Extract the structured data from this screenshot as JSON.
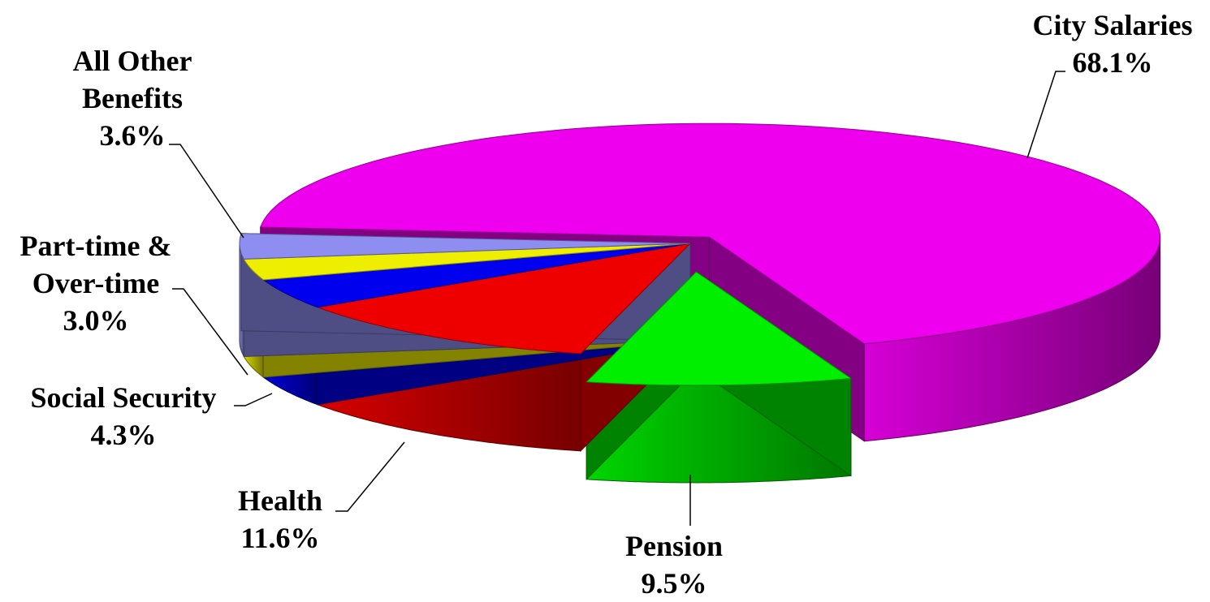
{
  "chart_data": {
    "type": "pie3d",
    "categories": [
      "City Salaries",
      "Pension",
      "Health",
      "Social Security",
      "Part-time & Over-time",
      "All Other Benefits"
    ],
    "values": [
      68.1,
      9.5,
      11.6,
      4.3,
      3.0,
      3.6
    ],
    "value_labels": [
      "68.1%",
      "9.5%",
      "11.6%",
      "4.3%",
      "3.0%",
      "3.6%"
    ],
    "colors": [
      "#ee00ee",
      "#00ee00",
      "#ee0000",
      "#0000ee",
      "#eeee00",
      "#8e8ef0"
    ]
  }
}
